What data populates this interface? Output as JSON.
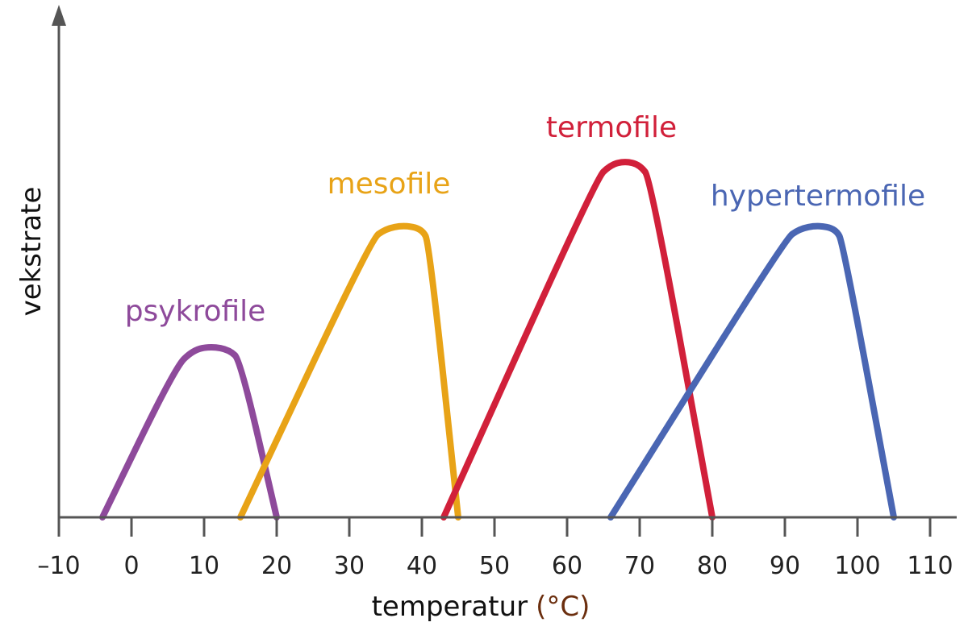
{
  "chart_data": {
    "type": "line",
    "ylabel": "vekstrate",
    "xlabel": "temperatur",
    "xlabel_unit": "(°C)",
    "xlim": [
      -10,
      115
    ],
    "ylim": [
      0,
      1
    ],
    "xticks": [
      -10,
      0,
      10,
      20,
      30,
      40,
      50,
      60,
      70,
      80,
      90,
      100,
      110
    ],
    "xtick_labels": [
      "–10",
      "0",
      "10",
      "20",
      "30",
      "40",
      "50",
      "60",
      "70",
      "80",
      "90",
      "100",
      "110"
    ],
    "grid": false,
    "series": [
      {
        "name": "psykrofile",
        "color": "#8e4a9b",
        "points": [
          [
            -4,
            0
          ],
          [
            6,
            0.42
          ],
          [
            8.5,
            0.47
          ],
          [
            11,
            0.48
          ],
          [
            13.5,
            0.47
          ],
          [
            15,
            0.44
          ],
          [
            20,
            0
          ]
        ]
      },
      {
        "name": "mesofile",
        "color": "#e8a317",
        "points": [
          [
            15,
            0
          ],
          [
            33,
            0.78
          ],
          [
            35,
            0.81
          ],
          [
            37.5,
            0.82
          ],
          [
            40,
            0.81
          ],
          [
            41,
            0.77
          ],
          [
            45,
            0
          ]
        ]
      },
      {
        "name": "termofile",
        "color": "#d1203a",
        "points": [
          [
            43,
            0
          ],
          [
            64,
            0.95
          ],
          [
            66,
            0.99
          ],
          [
            68,
            1.0
          ],
          [
            70,
            0.99
          ],
          [
            71.5,
            0.95
          ],
          [
            80,
            0
          ]
        ]
      },
      {
        "name": "hypertermofile",
        "color": "#4a66b3",
        "points": [
          [
            66,
            0
          ],
          [
            90,
            0.78
          ],
          [
            92,
            0.81
          ],
          [
            94.5,
            0.82
          ],
          [
            97,
            0.81
          ],
          [
            98,
            0.77
          ],
          [
            105,
            0
          ]
        ]
      }
    ]
  }
}
